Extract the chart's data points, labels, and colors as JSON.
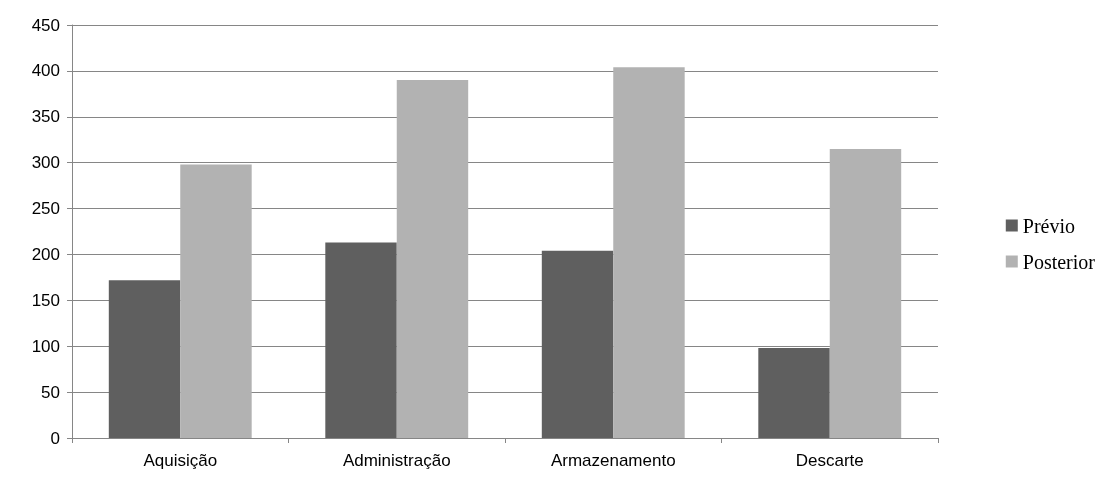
{
  "chart_data": {
    "type": "bar",
    "categories": [
      "Aquisição",
      "Administração",
      "Armazenamento",
      "Descarte"
    ],
    "series": [
      {
        "name": "Prévio",
        "color": "#5f5f5f",
        "values": [
          172,
          213,
          204,
          98
        ]
      },
      {
        "name": "Posterior",
        "color": "#b2b2b2",
        "values": [
          298,
          390,
          404,
          315
        ]
      }
    ],
    "ylim": [
      0,
      450
    ],
    "yticks": [
      0,
      50,
      100,
      150,
      200,
      250,
      300,
      350,
      400,
      450
    ],
    "grid": "y",
    "legend": "right"
  }
}
